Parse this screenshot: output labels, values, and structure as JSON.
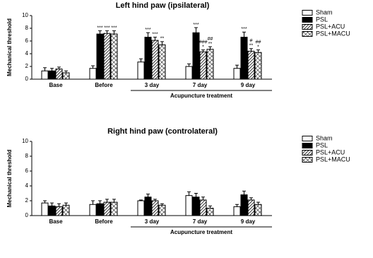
{
  "chart_data": [
    {
      "type": "bar",
      "title": "Left hind paw (ipsilateral)",
      "y_label": "Mechanical threshold",
      "annotation": "Acupuncture treatment",
      "categories": [
        "Base",
        "Before",
        "3 day",
        "7 day",
        "9 day"
      ],
      "ylim": [
        0,
        10
      ],
      "yticks": [
        0,
        2,
        4,
        6,
        8,
        10
      ],
      "legend": "top-right",
      "series": [
        {
          "name": "Sham",
          "color": "#ffffff",
          "pattern": null,
          "values": [
            1.3,
            1.7,
            2.7,
            2.0,
            1.7
          ],
          "errors": [
            0.5,
            0.4,
            0.5,
            0.4,
            0.5
          ],
          "significance": [
            null,
            null,
            null,
            null,
            null
          ]
        },
        {
          "name": "PSL",
          "color": "#000000",
          "pattern": null,
          "values": [
            1.3,
            7.1,
            6.6,
            7.3,
            6.6
          ],
          "errors": [
            0.4,
            0.5,
            0.7,
            0.8,
            0.8
          ],
          "significance": [
            null,
            [
              "***"
            ],
            [
              "***"
            ],
            [
              "***"
            ],
            [
              "***"
            ]
          ]
        },
        {
          "name": "PSL+ACU",
          "color": "#ffffff",
          "pattern": "diagonal",
          "values": [
            1.6,
            7.2,
            6.1,
            4.3,
            4.4
          ],
          "errors": [
            0.3,
            0.4,
            0.5,
            0.3,
            0.4
          ],
          "significance": [
            null,
            [
              "***"
            ],
            [
              "***"
            ],
            [
              "###",
              "*"
            ],
            [
              "#",
              "**"
            ]
          ]
        },
        {
          "name": "PSL+MACU",
          "color": "#ffffff",
          "pattern": "crosshatch",
          "values": [
            1.0,
            7.1,
            5.4,
            4.7,
            4.2
          ],
          "errors": [
            0.3,
            0.5,
            0.5,
            0.4,
            0.4
          ],
          "significance": [
            null,
            [
              "***"
            ],
            [
              "**"
            ],
            [
              "##",
              "**"
            ],
            [
              "##",
              "*"
            ]
          ]
        }
      ]
    },
    {
      "type": "bar",
      "title": "Right hind paw (controlateral)",
      "y_label": "Mechanical threshold",
      "annotation": "Acupuncture treatment",
      "categories": [
        "Base",
        "Before",
        "3 day",
        "7 day",
        "9 day"
      ],
      "ylim": [
        0,
        10
      ],
      "yticks": [
        0,
        2,
        4,
        6,
        8,
        10
      ],
      "legend": "top-right",
      "series": [
        {
          "name": "Sham",
          "color": "#ffffff",
          "pattern": null,
          "values": [
            1.7,
            1.5,
            2.0,
            2.7,
            1.2
          ],
          "errors": [
            0.3,
            0.5,
            0.1,
            0.5,
            0.3
          ]
        },
        {
          "name": "PSL",
          "color": "#000000",
          "pattern": null,
          "values": [
            1.3,
            1.6,
            2.5,
            2.5,
            2.8
          ],
          "errors": [
            0.4,
            0.4,
            0.4,
            0.5,
            0.5
          ]
        },
        {
          "name": "PSL+ACU",
          "color": "#ffffff",
          "pattern": "diagonal",
          "values": [
            1.2,
            1.8,
            2.0,
            2.1,
            2.1
          ],
          "errors": [
            0.4,
            0.4,
            0.2,
            0.4,
            0.3
          ]
        },
        {
          "name": "PSL+MACU",
          "color": "#ffffff",
          "pattern": "crosshatch",
          "values": [
            1.4,
            1.8,
            1.4,
            1.0,
            1.5
          ],
          "errors": [
            0.3,
            0.4,
            0.2,
            0.3,
            0.3
          ]
        }
      ]
    }
  ]
}
